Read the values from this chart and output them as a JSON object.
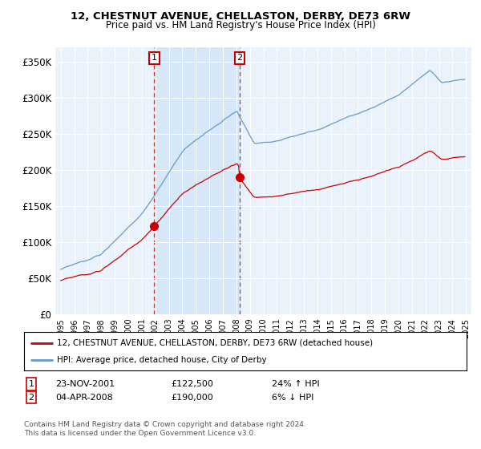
{
  "title": "12, CHESTNUT AVENUE, CHELLASTON, DERBY, DE73 6RW",
  "subtitle": "Price paid vs. HM Land Registry's House Price Index (HPI)",
  "yticks": [
    0,
    50000,
    100000,
    150000,
    200000,
    250000,
    300000,
    350000
  ],
  "ytick_labels": [
    "£0",
    "£50K",
    "£100K",
    "£150K",
    "£200K",
    "£250K",
    "£300K",
    "£350K"
  ],
  "hpi_color": "#6699cc",
  "price_color": "#cc0000",
  "shade_color": "#d6e8f7",
  "legend_label_price": "12, CHESTNUT AVENUE, CHELLASTON, DERBY, DE73 6RW (detached house)",
  "legend_label_hpi": "HPI: Average price, detached house, City of Derby",
  "annotation1_date": "23-NOV-2001",
  "annotation1_price": "£122,500",
  "annotation1_hpi": "24% ↑ HPI",
  "annotation2_date": "04-APR-2008",
  "annotation2_price": "£190,000",
  "annotation2_hpi": "6% ↓ HPI",
  "footer": "Contains HM Land Registry data © Crown copyright and database right 2024.\nThis data is licensed under the Open Government Licence v3.0.",
  "background_color": "#ffffff",
  "plot_bg_color": "#eaf3fb"
}
